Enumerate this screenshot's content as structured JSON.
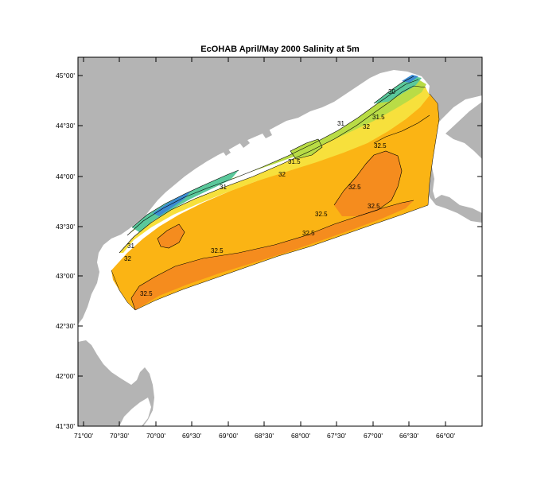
{
  "title": "EcOHAB  April/May 2000   Salinity at 5m",
  "lat_labels": [
    "45°00'",
    "44°30'",
    "44°00'",
    "43°30'",
    "43°00'",
    "42°30'",
    "42°00'",
    "41°30'"
  ],
  "lon_labels": [
    "71°00'",
    "70°30'",
    "70°00'",
    "69°30'",
    "69°00'",
    "68°30'",
    "68°00'",
    "67°30'",
    "67°00'",
    "66°30'",
    "66°00'"
  ],
  "contour_labels": [
    "32.5",
    "32.5",
    "32.5",
    "32.5",
    "32.5",
    "32.5",
    "32",
    "32",
    "32",
    "31.5",
    "31.5",
    "31",
    "31",
    "30",
    "32.5",
    "31"
  ],
  "colors": {
    "land": "#b4b4b4",
    "ocean": "#ffffff",
    "salinity_32_5_plus": "#f58c1e",
    "salinity_32_32_5": "#fbb414",
    "salinity_31_5_32": "#f7e03c",
    "salinity_31_31_5": "#b9dc46",
    "salinity_30_31": "#5ac89b",
    "salinity_below_30": "#3c8cd2"
  }
}
